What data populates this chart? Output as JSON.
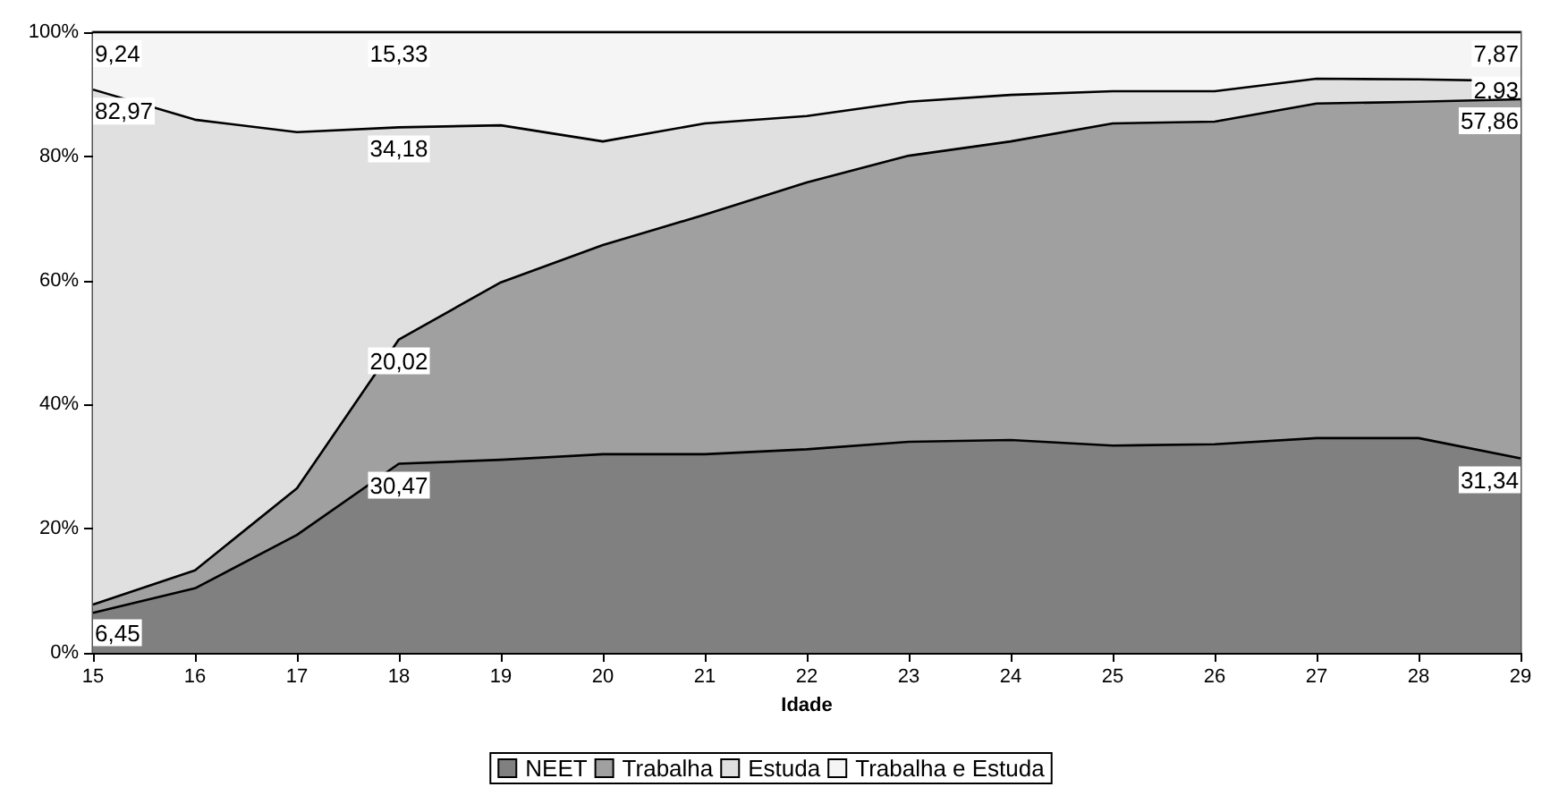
{
  "chart_data": {
    "type": "area",
    "stacked": true,
    "xlabel": "Idade",
    "legend": "bottom",
    "grid": false,
    "categories": [
      "15",
      "16",
      "17",
      "18",
      "19",
      "20",
      "21",
      "22",
      "23",
      "24",
      "25",
      "26",
      "27",
      "28",
      "29"
    ],
    "ylim": [
      0,
      100
    ],
    "yticks": [
      {
        "value": 0,
        "label": "0%"
      },
      {
        "value": 20,
        "label": "20%"
      },
      {
        "value": 40,
        "label": "40%"
      },
      {
        "value": 60,
        "label": "60%"
      },
      {
        "value": 80,
        "label": "80%"
      },
      {
        "value": 100,
        "label": "100%"
      }
    ],
    "series": [
      {
        "name": "NEET",
        "color": "#808080",
        "values": [
          6.45,
          10.4,
          19.0,
          30.47,
          31.1,
          32.0,
          32.0,
          32.8,
          34.0,
          34.3,
          33.4,
          33.6,
          34.6,
          34.6,
          31.34
        ],
        "value_labels": [
          "6,45",
          null,
          null,
          "30,47",
          null,
          null,
          null,
          null,
          null,
          null,
          null,
          null,
          null,
          null,
          "31,34"
        ]
      },
      {
        "name": "Trabalha",
        "color": "#a0a0a0",
        "values": [
          1.34,
          2.9,
          7.5,
          20.02,
          28.6,
          33.7,
          38.6,
          43.0,
          46.1,
          48.1,
          51.9,
          52.0,
          53.9,
          54.2,
          57.86
        ],
        "value_labels": [
          null,
          null,
          null,
          "20,02",
          null,
          null,
          null,
          null,
          null,
          null,
          null,
          null,
          null,
          null,
          "57,86"
        ]
      },
      {
        "name": "Estuda",
        "color": "#e0e0e0",
        "values": [
          82.97,
          72.6,
          57.4,
          34.18,
          25.3,
          16.7,
          14.7,
          10.7,
          8.7,
          7.5,
          5.2,
          4.9,
          4.0,
          3.6,
          2.93
        ],
        "value_labels": [
          "82,97",
          null,
          null,
          "34,18",
          null,
          null,
          null,
          null,
          null,
          null,
          null,
          null,
          null,
          null,
          "2,93"
        ]
      },
      {
        "name": "Trabalha e Estuda",
        "color": "#f5f5f5",
        "values": [
          9.24,
          14.1,
          16.1,
          15.33,
          15.0,
          17.6,
          14.7,
          13.5,
          11.2,
          10.1,
          9.5,
          9.5,
          7.5,
          7.6,
          7.87
        ],
        "value_labels": [
          "9,24",
          null,
          null,
          "15,33",
          null,
          null,
          null,
          null,
          null,
          null,
          null,
          null,
          null,
          null,
          "7,87"
        ]
      }
    ]
  }
}
